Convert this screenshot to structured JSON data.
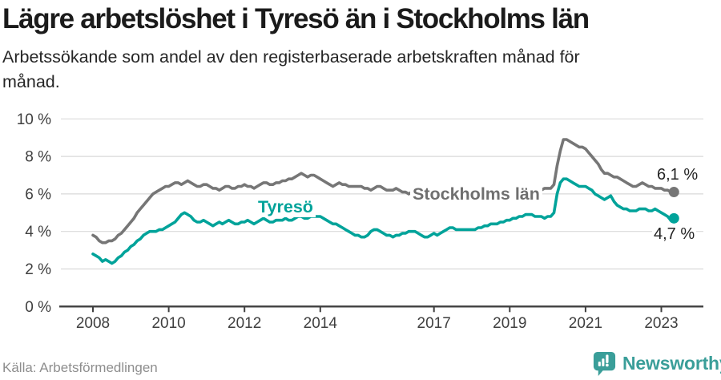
{
  "header": {
    "title": "Lägre arbetslöshet i Tyresö än i Stockholms län",
    "subtitle_lines": [
      "Arbetssökande som andel av den registerbaserade arbetskraften månad för",
      "månad."
    ]
  },
  "chart_data": {
    "type": "line",
    "title": "Lägre arbetslöshet i Tyresö än i Stockholms län",
    "subtitle": "Arbetssökande som andel av den registerbaserade arbetskraften månad för månad.",
    "x_unit": "month",
    "x_start": "2008-01",
    "x_end": "2023-05",
    "ylim": [
      0,
      10
    ],
    "grid": true,
    "legend_position": "inline",
    "yticks": [
      {
        "value": 0,
        "label": "0 %"
      },
      {
        "value": 2,
        "label": "2 %"
      },
      {
        "value": 4,
        "label": "4 %"
      },
      {
        "value": 6,
        "label": "6 %"
      },
      {
        "value": 8,
        "label": "8 %"
      },
      {
        "value": 10,
        "label": "10 %"
      }
    ],
    "xticks": [
      {
        "year": 2008,
        "label": "2008"
      },
      {
        "year": 2010,
        "label": "2010"
      },
      {
        "year": 2012,
        "label": "2012"
      },
      {
        "year": 2014,
        "label": "2014"
      },
      {
        "year": 2017,
        "label": "2017"
      },
      {
        "year": 2019,
        "label": "2019"
      },
      {
        "year": 2021,
        "label": "2021"
      },
      {
        "year": 2023,
        "label": "2023"
      }
    ],
    "series": [
      {
        "id": "stockholms-lan",
        "name": "Stockholms län",
        "inline_label": "Stockholms län",
        "end_label": "6,1 %",
        "end_value": 6.1,
        "color": "#767676",
        "values": [
          3.8,
          3.7,
          3.5,
          3.4,
          3.4,
          3.5,
          3.5,
          3.6,
          3.8,
          3.9,
          4.1,
          4.3,
          4.5,
          4.7,
          5.0,
          5.2,
          5.4,
          5.6,
          5.8,
          6.0,
          6.1,
          6.2,
          6.3,
          6.4,
          6.4,
          6.5,
          6.6,
          6.6,
          6.5,
          6.6,
          6.7,
          6.6,
          6.5,
          6.4,
          6.4,
          6.5,
          6.5,
          6.4,
          6.3,
          6.3,
          6.2,
          6.3,
          6.4,
          6.4,
          6.3,
          6.3,
          6.4,
          6.4,
          6.5,
          6.4,
          6.4,
          6.3,
          6.4,
          6.5,
          6.6,
          6.6,
          6.5,
          6.5,
          6.6,
          6.6,
          6.7,
          6.7,
          6.8,
          6.8,
          6.9,
          7.0,
          7.1,
          7.0,
          6.9,
          7.0,
          7.0,
          6.9,
          6.8,
          6.7,
          6.6,
          6.5,
          6.4,
          6.5,
          6.6,
          6.5,
          6.5,
          6.4,
          6.4,
          6.4,
          6.4,
          6.4,
          6.3,
          6.3,
          6.2,
          6.3,
          6.4,
          6.4,
          6.3,
          6.2,
          6.2,
          6.2,
          6.3,
          6.2,
          6.1,
          6.1,
          6.0,
          6.1,
          6.2,
          6.2,
          6.1,
          6.0,
          6.0,
          6.0,
          6.1,
          6.0,
          6.0,
          5.9,
          5.9,
          6.0,
          6.1,
          6.2,
          6.1,
          6.0,
          6.0,
          6.1,
          6.1,
          6.0,
          5.9,
          5.9,
          5.8,
          5.9,
          6.0,
          6.1,
          6.0,
          5.9,
          6.0,
          6.0,
          6.1,
          6.1,
          6.0,
          6.0,
          6.0,
          6.1,
          6.2,
          6.3,
          6.2,
          6.2,
          6.2,
          6.3,
          6.3,
          6.3,
          6.5,
          7.5,
          8.3,
          8.9,
          8.9,
          8.8,
          8.7,
          8.6,
          8.5,
          8.5,
          8.4,
          8.2,
          8.0,
          7.8,
          7.6,
          7.3,
          7.1,
          7.1,
          7.0,
          6.9,
          6.9,
          6.8,
          6.7,
          6.6,
          6.5,
          6.4,
          6.4,
          6.5,
          6.6,
          6.5,
          6.4,
          6.4,
          6.3,
          6.3,
          6.3,
          6.2,
          6.2,
          6.1,
          6.1
        ]
      },
      {
        "id": "tyreso",
        "name": "Tyresö",
        "inline_label": "Tyresö",
        "end_label": "4,7 %",
        "end_value": 4.7,
        "color": "#00a39a",
        "values": [
          2.8,
          2.7,
          2.6,
          2.4,
          2.5,
          2.4,
          2.3,
          2.4,
          2.6,
          2.7,
          2.9,
          3.0,
          3.2,
          3.3,
          3.5,
          3.6,
          3.8,
          3.9,
          4.0,
          4.0,
          4.0,
          4.1,
          4.1,
          4.2,
          4.3,
          4.4,
          4.5,
          4.7,
          4.9,
          5.0,
          4.9,
          4.8,
          4.6,
          4.5,
          4.5,
          4.6,
          4.5,
          4.4,
          4.3,
          4.4,
          4.5,
          4.4,
          4.5,
          4.6,
          4.5,
          4.4,
          4.4,
          4.5,
          4.5,
          4.6,
          4.5,
          4.4,
          4.5,
          4.6,
          4.7,
          4.6,
          4.5,
          4.5,
          4.6,
          4.6,
          4.6,
          4.7,
          4.6,
          4.6,
          4.7,
          4.8,
          4.8,
          4.7,
          4.7,
          4.8,
          4.8,
          4.8,
          4.8,
          4.7,
          4.6,
          4.5,
          4.4,
          4.4,
          4.3,
          4.2,
          4.1,
          4.0,
          3.9,
          3.8,
          3.8,
          3.7,
          3.7,
          3.8,
          4.0,
          4.1,
          4.1,
          4.0,
          3.9,
          3.8,
          3.8,
          3.7,
          3.8,
          3.8,
          3.9,
          3.9,
          4.0,
          4.0,
          4.0,
          3.9,
          3.8,
          3.7,
          3.7,
          3.8,
          3.9,
          3.8,
          3.9,
          4.0,
          4.1,
          4.2,
          4.2,
          4.1,
          4.1,
          4.1,
          4.1,
          4.1,
          4.1,
          4.1,
          4.2,
          4.2,
          4.3,
          4.3,
          4.4,
          4.4,
          4.4,
          4.5,
          4.5,
          4.6,
          4.6,
          4.7,
          4.7,
          4.8,
          4.8,
          4.9,
          4.9,
          4.9,
          4.8,
          4.8,
          4.8,
          4.7,
          4.8,
          4.8,
          5.0,
          6.0,
          6.6,
          6.8,
          6.8,
          6.7,
          6.6,
          6.5,
          6.4,
          6.4,
          6.4,
          6.3,
          6.2,
          6.0,
          5.9,
          5.8,
          5.7,
          5.8,
          5.9,
          5.6,
          5.4,
          5.3,
          5.2,
          5.2,
          5.1,
          5.1,
          5.1,
          5.2,
          5.2,
          5.2,
          5.1,
          5.1,
          5.2,
          5.1,
          5.0,
          4.9,
          4.8,
          4.6,
          4.7
        ]
      }
    ]
  },
  "footer": {
    "source": "Källa: Arbetsförmedlingen",
    "logo_text": "Newsworthy"
  },
  "colors": {
    "accent_teal": "#00a39a",
    "line_gray": "#767676",
    "grid": "#d9d9d9",
    "axis": "#3f3f3f",
    "logo_teal": "#3a9e99"
  }
}
